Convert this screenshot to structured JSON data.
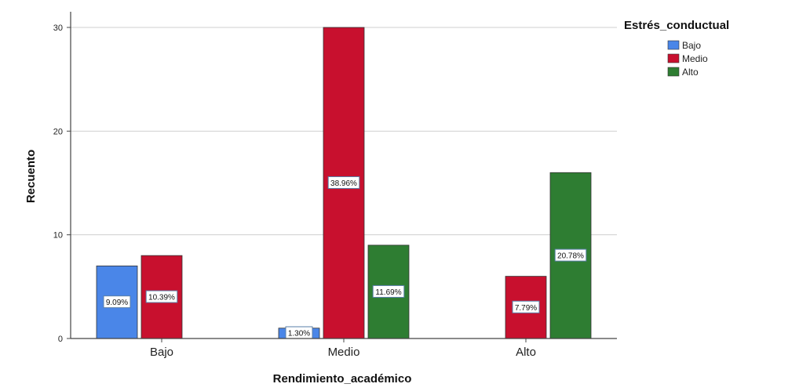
{
  "chart_data": {
    "type": "bar",
    "xlabel": "Rendimiento_académico",
    "ylabel": "Recuento",
    "categories": [
      "Bajo",
      "Medio",
      "Alto"
    ],
    "ylim": [
      0,
      30
    ],
    "yticks": [
      0,
      10,
      20,
      30
    ],
    "grid": true,
    "legend": {
      "title": "Estrés_conductual",
      "position": "top-right"
    },
    "series": [
      {
        "name": "Bajo",
        "color": "#4a86e8",
        "values": [
          7,
          1,
          0
        ],
        "labels": [
          "9.09%",
          "1.30%",
          ""
        ]
      },
      {
        "name": "Medio",
        "color": "#c8102e",
        "values": [
          8,
          30,
          6
        ],
        "labels": [
          "10.39%",
          "38.96%",
          "7.79%"
        ]
      },
      {
        "name": "Alto",
        "color": "#2e7d32",
        "values": [
          0,
          9,
          16
        ],
        "labels": [
          "",
          "11.69%",
          "20.78%"
        ]
      }
    ]
  }
}
